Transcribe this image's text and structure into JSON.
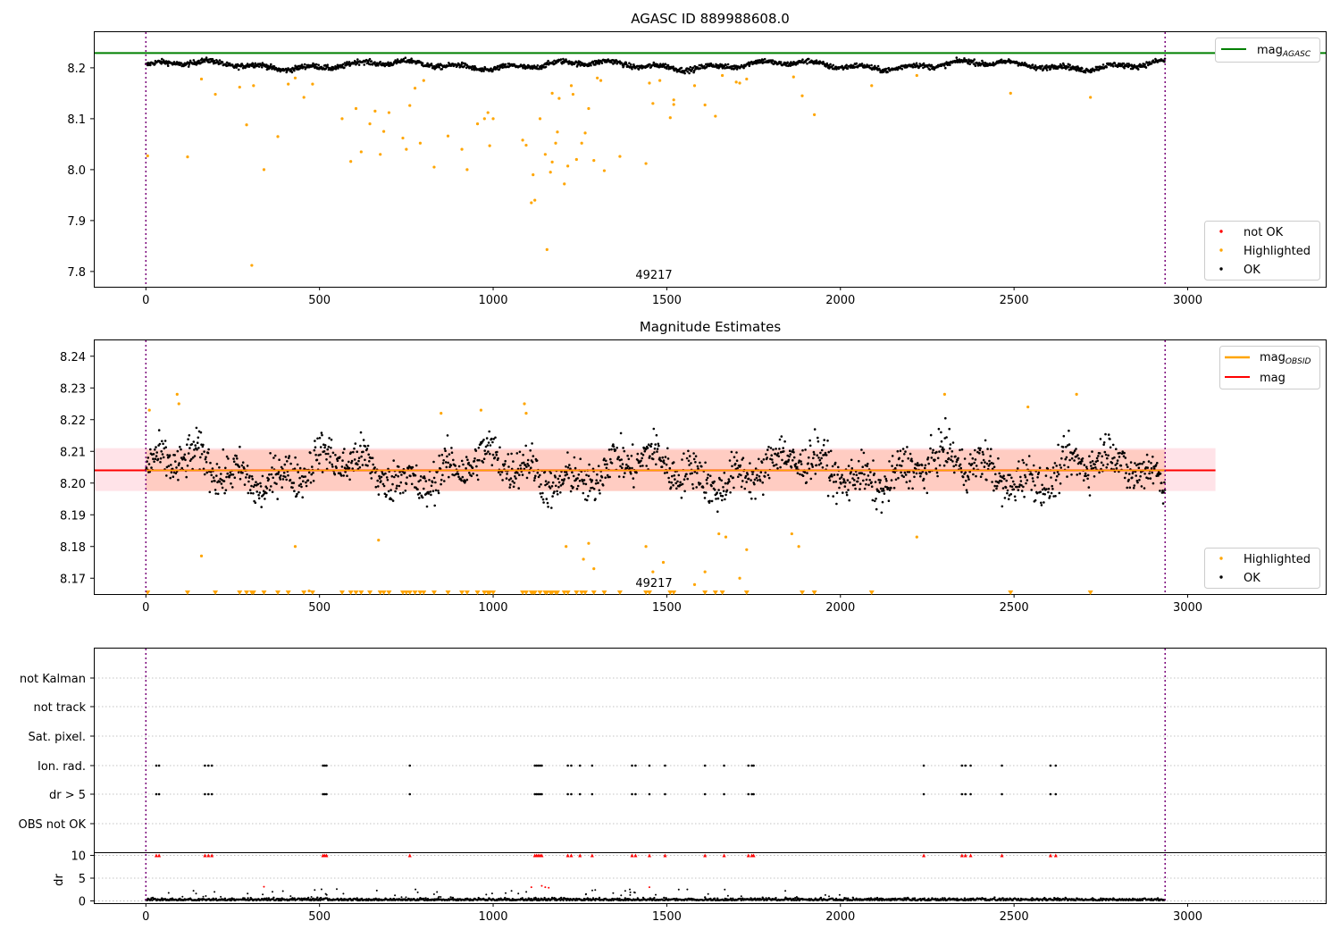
{
  "colors": {
    "ok": "#000000",
    "highlighted": "#ffa500",
    "not_ok": "#ff0000",
    "agasc_line": "#008000",
    "mean_line": "#ff0000",
    "obsid_line": "#ffa500",
    "band_outer": "#ffc0cb",
    "band_inner": "#ffa07a",
    "boundary": "#800080"
  },
  "chart_data": [
    {
      "type": "scatter",
      "title": "AGASC ID 889988608.0",
      "obsid_label": "49217",
      "xlim": [
        -150,
        3400
      ],
      "ylim": [
        7.77,
        8.27
      ],
      "x_ticks": [
        "0",
        "500",
        "1000",
        "1500",
        "2000",
        "2500",
        "3000"
      ],
      "y_ticks": [
        "7.8",
        "7.9",
        "8.0",
        "8.1",
        "8.2"
      ],
      "agasc_mag": 8.229,
      "obs_range": [
        0,
        2935
      ],
      "ok_level": 8.205,
      "legend_line": {
        "label": "mag",
        "sub": "AGASC"
      },
      "legend_points": [
        "not OK",
        "Highlighted",
        "OK"
      ],
      "highlighted_points": [
        [
          5,
          8.027
        ],
        [
          120,
          8.025
        ],
        [
          160,
          8.178
        ],
        [
          200,
          8.148
        ],
        [
          270,
          8.162
        ],
        [
          290,
          8.088
        ],
        [
          305,
          7.812
        ],
        [
          310,
          8.165
        ],
        [
          340,
          8.0
        ],
        [
          380,
          8.065
        ],
        [
          410,
          8.168
        ],
        [
          430,
          8.18
        ],
        [
          455,
          8.142
        ],
        [
          480,
          8.168
        ],
        [
          565,
          8.1
        ],
        [
          590,
          8.016
        ],
        [
          605,
          8.12
        ],
        [
          620,
          8.035
        ],
        [
          645,
          8.09
        ],
        [
          660,
          8.115
        ],
        [
          675,
          8.03
        ],
        [
          685,
          8.075
        ],
        [
          700,
          8.112
        ],
        [
          740,
          8.062
        ],
        [
          750,
          8.04
        ],
        [
          760,
          8.126
        ],
        [
          775,
          8.16
        ],
        [
          790,
          8.052
        ],
        [
          800,
          8.175
        ],
        [
          830,
          8.005
        ],
        [
          870,
          8.066
        ],
        [
          910,
          8.04
        ],
        [
          925,
          8.0
        ],
        [
          955,
          8.09
        ],
        [
          975,
          8.1
        ],
        [
          985,
          8.112
        ],
        [
          990,
          8.047
        ],
        [
          1000,
          8.1
        ],
        [
          1085,
          8.058
        ],
        [
          1095,
          8.048
        ],
        [
          1110,
          7.935
        ],
        [
          1115,
          7.99
        ],
        [
          1120,
          7.94
        ],
        [
          1135,
          8.1
        ],
        [
          1150,
          8.03
        ],
        [
          1155,
          7.843
        ],
        [
          1165,
          7.995
        ],
        [
          1170,
          8.015
        ],
        [
          1180,
          8.052
        ],
        [
          1185,
          8.074
        ],
        [
          1205,
          7.972
        ],
        [
          1215,
          8.007
        ],
        [
          1225,
          8.165
        ],
        [
          1240,
          8.02
        ],
        [
          1255,
          8.052
        ],
        [
          1265,
          8.072
        ],
        [
          1275,
          8.12
        ],
        [
          1290,
          8.018
        ],
        [
          1300,
          8.18
        ],
        [
          1310,
          8.175
        ],
        [
          1320,
          7.998
        ],
        [
          1365,
          8.026
        ],
        [
          1440,
          8.012
        ],
        [
          1450,
          8.17
        ],
        [
          1460,
          8.13
        ],
        [
          1480,
          8.175
        ],
        [
          1510,
          8.102
        ],
        [
          1520,
          8.137
        ],
        [
          1580,
          8.165
        ],
        [
          1610,
          8.127
        ],
        [
          1640,
          8.105
        ],
        [
          1660,
          8.185
        ],
        [
          1710,
          8.17
        ],
        [
          1730,
          8.178
        ],
        [
          1865,
          8.182
        ],
        [
          1890,
          8.145
        ],
        [
          1925,
          8.108
        ],
        [
          2090,
          8.165
        ],
        [
          2220,
          8.185
        ],
        [
          2490,
          8.15
        ],
        [
          2720,
          8.142
        ],
        [
          1170,
          8.15
        ],
        [
          1190,
          8.14
        ],
        [
          1230,
          8.148
        ],
        [
          1520,
          8.128
        ],
        [
          1700,
          8.172
        ]
      ],
      "not_ok_points": []
    },
    {
      "type": "scatter",
      "title": "Magnitude Estimates",
      "obsid_label": "49217",
      "xlim": [
        -150,
        3400
      ],
      "ylim": [
        8.165,
        8.245
      ],
      "x_ticks": [
        "0",
        "500",
        "1000",
        "1500",
        "2000",
        "2500",
        "3000"
      ],
      "y_ticks": [
        "8.17",
        "8.18",
        "8.19",
        "8.20",
        "8.21",
        "8.22",
        "8.23",
        "8.24"
      ],
      "mean_mag": 8.204,
      "obsid_mag": 8.204,
      "band_outer": [
        8.1975,
        8.211
      ],
      "band_inner": [
        8.1975,
        8.2105
      ],
      "band_x": [
        -150,
        3080
      ],
      "obs_range": [
        0,
        2935
      ],
      "legend_lines": [
        {
          "label": "mag",
          "sub": "OBSID"
        },
        {
          "label": "mag",
          "sub": ""
        }
      ],
      "legend_points": [
        "Highlighted",
        "OK"
      ],
      "highlighted_points": [
        [
          10,
          8.223
        ],
        [
          90,
          8.228
        ],
        [
          95,
          8.225
        ],
        [
          160,
          8.177
        ],
        [
          430,
          8.18
        ],
        [
          470,
          8.166
        ],
        [
          670,
          8.182
        ],
        [
          850,
          8.222
        ],
        [
          965,
          8.223
        ],
        [
          1090,
          8.225
        ],
        [
          1095,
          8.222
        ],
        [
          1210,
          8.18
        ],
        [
          1260,
          8.176
        ],
        [
          1275,
          8.181
        ],
        [
          1290,
          8.173
        ],
        [
          1440,
          8.18
        ],
        [
          1460,
          8.172
        ],
        [
          1490,
          8.175
        ],
        [
          1580,
          8.168
        ],
        [
          1610,
          8.172
        ],
        [
          1650,
          8.184
        ],
        [
          1670,
          8.183
        ],
        [
          1710,
          8.17
        ],
        [
          1730,
          8.179
        ],
        [
          1860,
          8.184
        ],
        [
          1880,
          8.18
        ],
        [
          2220,
          8.183
        ],
        [
          2300,
          8.228
        ],
        [
          2540,
          8.224
        ],
        [
          2680,
          8.228
        ]
      ],
      "low_markers_x": [
        5,
        120,
        200,
        270,
        290,
        305,
        310,
        340,
        380,
        410,
        455,
        480,
        565,
        590,
        605,
        620,
        645,
        675,
        685,
        700,
        740,
        750,
        760,
        775,
        790,
        800,
        830,
        870,
        910,
        925,
        955,
        975,
        985,
        990,
        1000,
        1085,
        1095,
        1110,
        1115,
        1120,
        1135,
        1150,
        1155,
        1165,
        1170,
        1180,
        1185,
        1205,
        1215,
        1240,
        1255,
        1265,
        1290,
        1320,
        1365,
        1440,
        1450,
        1510,
        1520,
        1610,
        1640,
        1660,
        1730,
        1890,
        1925,
        2090,
        2490,
        2720
      ]
    },
    {
      "type": "scatter",
      "xlim": [
        -150,
        3400
      ],
      "obs_range": [
        0,
        2935
      ],
      "flag_rows": [
        "not Kalman",
        "not track",
        "Sat. pixel.",
        "Ion. rad.",
        "dr > 5",
        "OBS not OK"
      ],
      "flag_x": [
        30,
        38,
        170,
        180,
        190,
        510,
        515,
        520,
        760,
        1120,
        1125,
        1130,
        1135,
        1140,
        1215,
        1225,
        1250,
        1285,
        1400,
        1410,
        1450,
        1495,
        1610,
        1665,
        1735,
        1745,
        1750,
        2240,
        2350,
        2360,
        2375,
        2465,
        2605,
        2620
      ],
      "dr_ylim": [
        -0.5,
        10.5
      ],
      "dr_ticks": [
        "0",
        "5",
        "10"
      ],
      "dr_label": "dr",
      "dr_high_points": [
        [
          340,
          3.1
        ],
        [
          1110,
          3.0
        ],
        [
          1140,
          3.3
        ],
        [
          1150,
          3.0
        ],
        [
          1450,
          3.0
        ],
        [
          1160,
          2.9
        ]
      ],
      "x_ticks": [
        "0",
        "500",
        "1000",
        "1500",
        "2000",
        "2500",
        "3000"
      ]
    }
  ]
}
